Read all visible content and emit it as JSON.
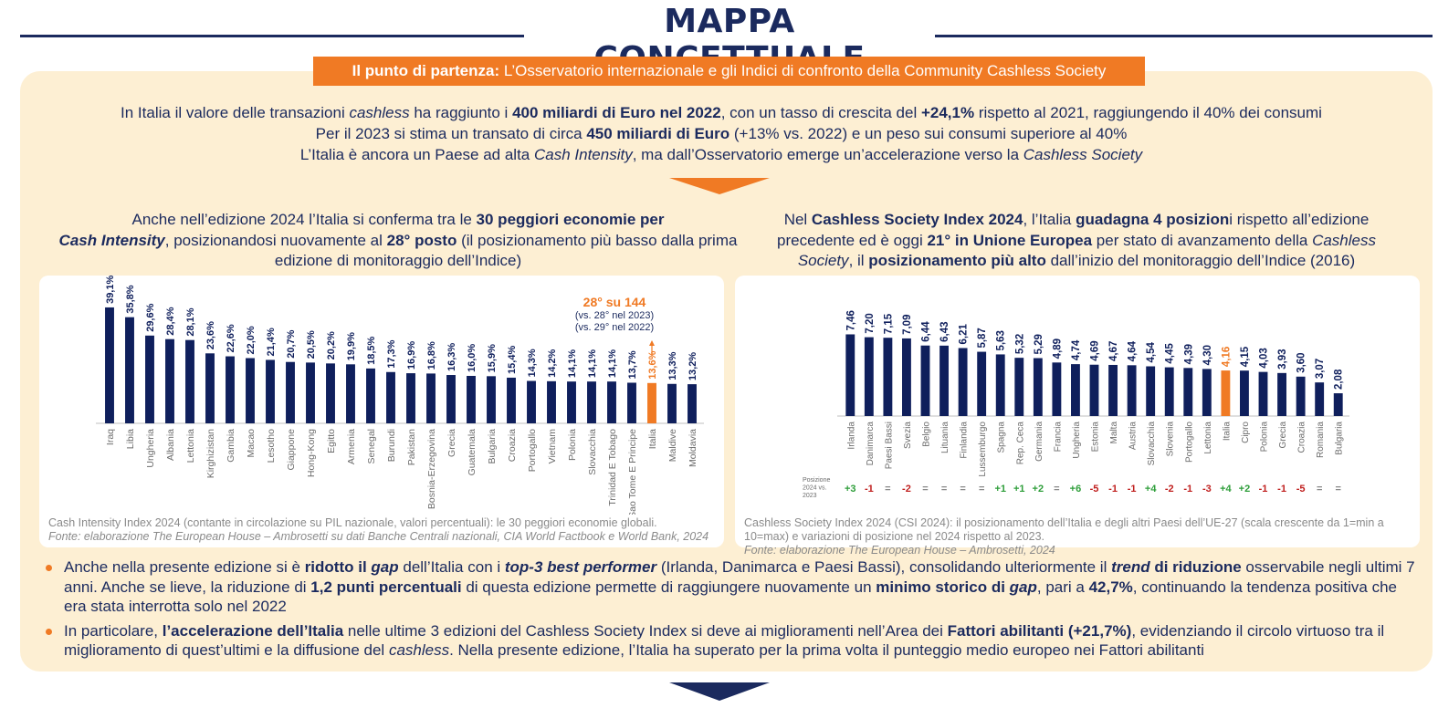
{
  "title": "MAPPA CONCETTUALE",
  "banner": {
    "bold": "Il punto di partenza:",
    "text": " L’Osservatorio internazionale e gli Indici di confronto della Community Cashless Society"
  },
  "intro": {
    "line1_a": "In Italia il valore delle transazioni ",
    "line1_b": "cashless",
    "line1_c": " ha raggiunto i ",
    "line1_d": "400 miliardi di Euro nel 2022",
    "line1_e": ", con un tasso di crescita del ",
    "line1_f": "+24,1%",
    "line1_g": " rispetto al 2021, raggiungendo il 40% dei consumi",
    "line2_a": "Per il 2023 si stima un transato di circa ",
    "line2_b": "450 miliardi di Euro",
    "line2_c": " (+13% vs. 2022) e un peso sui consumi superiore al 40%",
    "line3_a": "L’Italia è ancora un Paese ad alta ",
    "line3_b": "Cash Intensity",
    "line3_c": ", ma dall’Osservatorio emerge un’accelerazione verso la ",
    "line3_d": "Cashless Society"
  },
  "left_heading": {
    "a": "Anche nell’edizione 2024 l’Italia si conferma tra le ",
    "b": "30 peggiori economie per",
    "c": "Cash Intensity",
    "d": ", posizionandosi nuovamente al ",
    "e": "28° posto",
    "f": " (il posizionamento più basso dalla prima edizione di monitoraggio dell’Indice)"
  },
  "right_heading": {
    "a": "Nel ",
    "b": "Cashless Society Index 2024",
    "c": ", l’Italia ",
    "d": "guadagna 4 posizion",
    "e": "i rispetto all’edizione precedente ed è oggi ",
    "f": "21° in Unione Europea",
    "g": " per stato di avanzamento della ",
    "h": "Cashless Society",
    "i": ", il ",
    "j": "posizionamento più alto",
    "k": " dall’inizio del monitoraggio dell’Indice (2016)"
  },
  "left_callout": {
    "main": "28° su 144",
    "sub1": "(vs. 28° nel 2023)",
    "sub2": "(vs. 29° nel 2022)"
  },
  "left_note": {
    "text": "Cash Intensity Index 2024 (contante in circolazione su PIL nazionale, valori percentuali): le 30 peggiori economie globali.",
    "source": "Fonte: elaborazione The European House – Ambrosetti su dati Banche Centrali nazionali, CIA World Factbook e World Bank, 2024"
  },
  "right_note": {
    "text": "Cashless Society Index 2024 (CSI 2024): il posizionamento dell’Italia e degli altri Paesi dell’UE-27 (scala crescente da 1=min a 10=max) e variazioni di posizione nel 2024 rispetto al 2023.",
    "source": "Fonte: elaborazione The European House – Ambrosetti, 2024"
  },
  "position_label": [
    "Posizione",
    "2024 vs.",
    "2023"
  ],
  "bullets": {
    "b1_a": "Anche nella presente edizione si è ",
    "b1_b": "ridotto il ",
    "b1_c": "gap",
    "b1_d": " dell’Italia con i ",
    "b1_e": "top-3 best performer",
    "b1_f": " (Irlanda, Danimarca e Paesi Bassi), consolidando ulteriormente il ",
    "b1_g": "trend",
    "b1_h": " di riduzione",
    "b1_i": " osservabile negli ultimi 7 anni. Anche se lieve, la riduzione di ",
    "b1_j": "1,2 punti percentuali",
    "b1_k": " di questa edizione permette di raggiungere nuovamente un ",
    "b1_l": "minimo storico di ",
    "b1_m": "gap",
    "b1_n": ", pari a ",
    "b1_o": "42,7%",
    "b1_p": ", continuando la tendenza positiva che era stata interrotta solo nel 2022",
    "b2_a": "In particolare, ",
    "b2_b": "l’accelerazione dell’Italia",
    "b2_c": " nelle ultime 3 edizioni del Cashless Society Index si deve ai miglioramenti nell’Area dei ",
    "b2_d": "Fattori abilitanti",
    "b2_e": " (+21,7%)",
    "b2_f": ", evidenziando il circolo virtuoso tra il miglioramento di quest’ultimi e la diffusione del ",
    "b2_g": "cashless",
    "b2_h": ". Nella presente edizione, l’Italia ha superato per la prima volta il punteggio medio europeo nei Fattori abilitanti"
  },
  "colors": {
    "navy": "#0f1f5c",
    "orange": "#f07a24",
    "panel": "#fdefd3",
    "green": "#2e9e3a",
    "red": "#c0201f",
    "grey": "#8a8a8a"
  },
  "chart_data": [
    {
      "type": "bar",
      "categories": [
        "Iraq",
        "Libia",
        "Ungheria",
        "Albania",
        "Lettonia",
        "Kirghizistan",
        "Gambia",
        "Macao",
        "Lesotho",
        "Giappone",
        "Hong-Kong",
        "Egitto",
        "Armenia",
        "Senegal",
        "Burundi",
        "Pakistan",
        "Bosnia-Erzegovina",
        "Grecia",
        "Guatemala",
        "Bulgaria",
        "Croazia",
        "Portogallo",
        "Vietnam",
        "Polonia",
        "Slovacchia",
        "Trinidad E Tobago",
        "Sao Tome E Principe",
        "Italia",
        "Maldive",
        "Moldavia"
      ],
      "values": [
        39.1,
        35.8,
        29.6,
        28.4,
        28.1,
        23.6,
        22.6,
        22.0,
        21.4,
        20.7,
        20.5,
        20.2,
        19.9,
        18.5,
        17.3,
        16.9,
        16.8,
        16.3,
        16.0,
        15.9,
        15.4,
        14.3,
        14.2,
        14.1,
        14.1,
        14.1,
        13.7,
        13.6,
        13.3,
        13.2
      ],
      "labels": [
        "39,1%",
        "35,8%",
        "29,6%",
        "28,4%",
        "28,1%",
        "23,6%",
        "22,6%",
        "22,0%",
        "21,4%",
        "20,7%",
        "20,5%",
        "20,2%",
        "19,9%",
        "18,5%",
        "17,3%",
        "16,9%",
        "16,8%",
        "16,3%",
        "16,0%",
        "15,9%",
        "15,4%",
        "14,3%",
        "14,2%",
        "14,1%",
        "14,1%",
        "14,1%",
        "13,7%",
        "13,6%",
        "13,3%",
        "13,2%"
      ],
      "highlight": "Italia",
      "ylim": [
        0,
        40
      ]
    },
    {
      "type": "bar",
      "categories": [
        "Irlanda",
        "Danimarca",
        "Paesi Bassi",
        "Svezia",
        "Belgio",
        "Lituania",
        "Finlandia",
        "Lussemburgo",
        "Spagna",
        "Rep. Ceca",
        "Germania",
        "Francia",
        "Ungheria",
        "Estonia",
        "Malta",
        "Austria",
        "Slovacchia",
        "Slovenia",
        "Portogallo",
        "Lettonia",
        "Italia",
        "Cipro",
        "Polonia",
        "Grecia",
        "Croazia",
        "Romania",
        "Bulgaria"
      ],
      "values": [
        7.46,
        7.2,
        7.15,
        7.09,
        6.44,
        6.43,
        6.21,
        5.87,
        5.63,
        5.32,
        5.29,
        4.89,
        4.74,
        4.69,
        4.67,
        4.64,
        4.54,
        4.45,
        4.39,
        4.3,
        4.16,
        4.15,
        4.03,
        3.93,
        3.6,
        3.07,
        2.08
      ],
      "labels": [
        "7,46",
        "7,20",
        "7,15",
        "7,09",
        "6,44",
        "6,43",
        "6,21",
        "5,87",
        "5,63",
        "5,32",
        "5,29",
        "4,89",
        "4,74",
        "4,69",
        "4,67",
        "4,64",
        "4,54",
        "4,45",
        "4,39",
        "4,30",
        "4,16",
        "4,15",
        "4,03",
        "3,93",
        "3,60",
        "3,07",
        "2,08"
      ],
      "position_change": [
        "+3",
        "-1",
        "=",
        "-2",
        "=",
        "=",
        "=",
        "=",
        "+1",
        "+1",
        "+2",
        "=",
        "+6",
        "-5",
        "-1",
        "-1",
        "+4",
        "-2",
        "-1",
        "-3",
        "+4",
        "+2",
        "-1",
        "-1",
        "-5",
        "=",
        "="
      ],
      "highlight": "Italia",
      "ylim": [
        0,
        10
      ]
    }
  ]
}
